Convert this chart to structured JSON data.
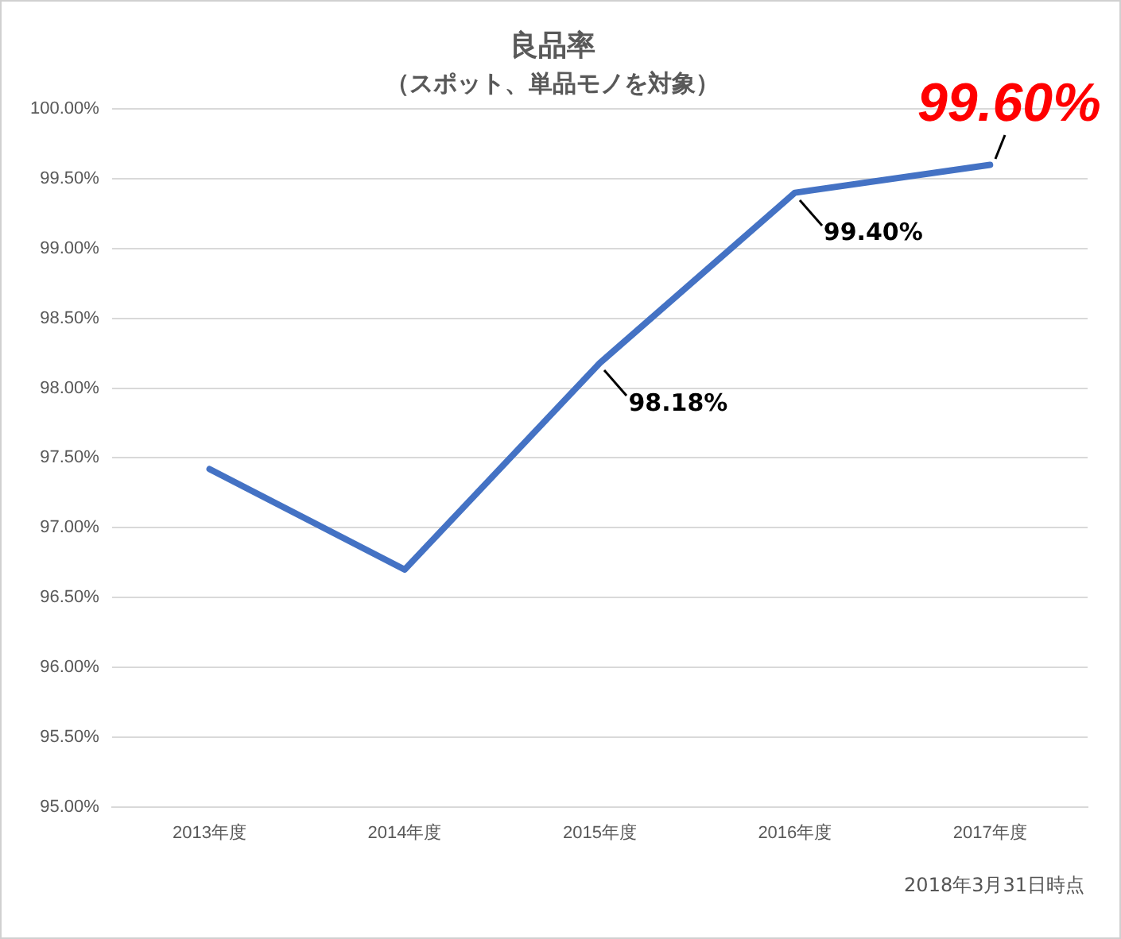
{
  "chart_data": {
    "type": "line",
    "title": "良品率",
    "subtitle": "（スポット、単品モノを対象）",
    "categories": [
      "2013年度",
      "2014年度",
      "2015年度",
      "2016年度",
      "2017年度"
    ],
    "series": [
      {
        "color": "#4472c4",
        "values": [
          97.42,
          96.7,
          98.18,
          99.4,
          99.6
        ]
      }
    ],
    "value_labels": [
      null,
      null,
      "98.18%",
      "99.40%",
      "99.60%"
    ],
    "ylim": [
      95,
      100
    ],
    "yticks": [
      {
        "value": 95,
        "label": "95.00%"
      },
      {
        "value": 95.5,
        "label": "95.50%"
      },
      {
        "value": 96,
        "label": "96.00%"
      },
      {
        "value": 96.5,
        "label": "96.50%"
      },
      {
        "value": 97,
        "label": "97.00%"
      },
      {
        "value": 97.5,
        "label": "97.50%"
      },
      {
        "value": 98,
        "label": "98.00%"
      },
      {
        "value": 98.5,
        "label": "98.50%"
      },
      {
        "value": 99,
        "label": "99.00%"
      },
      {
        "value": 99.5,
        "label": "99.50%"
      },
      {
        "value": 100,
        "label": "100.00%"
      }
    ],
    "grid": "y",
    "legend": false,
    "marker": "none",
    "line_style": "solid",
    "annotations": [
      "2018年3月31日時点"
    ]
  }
}
